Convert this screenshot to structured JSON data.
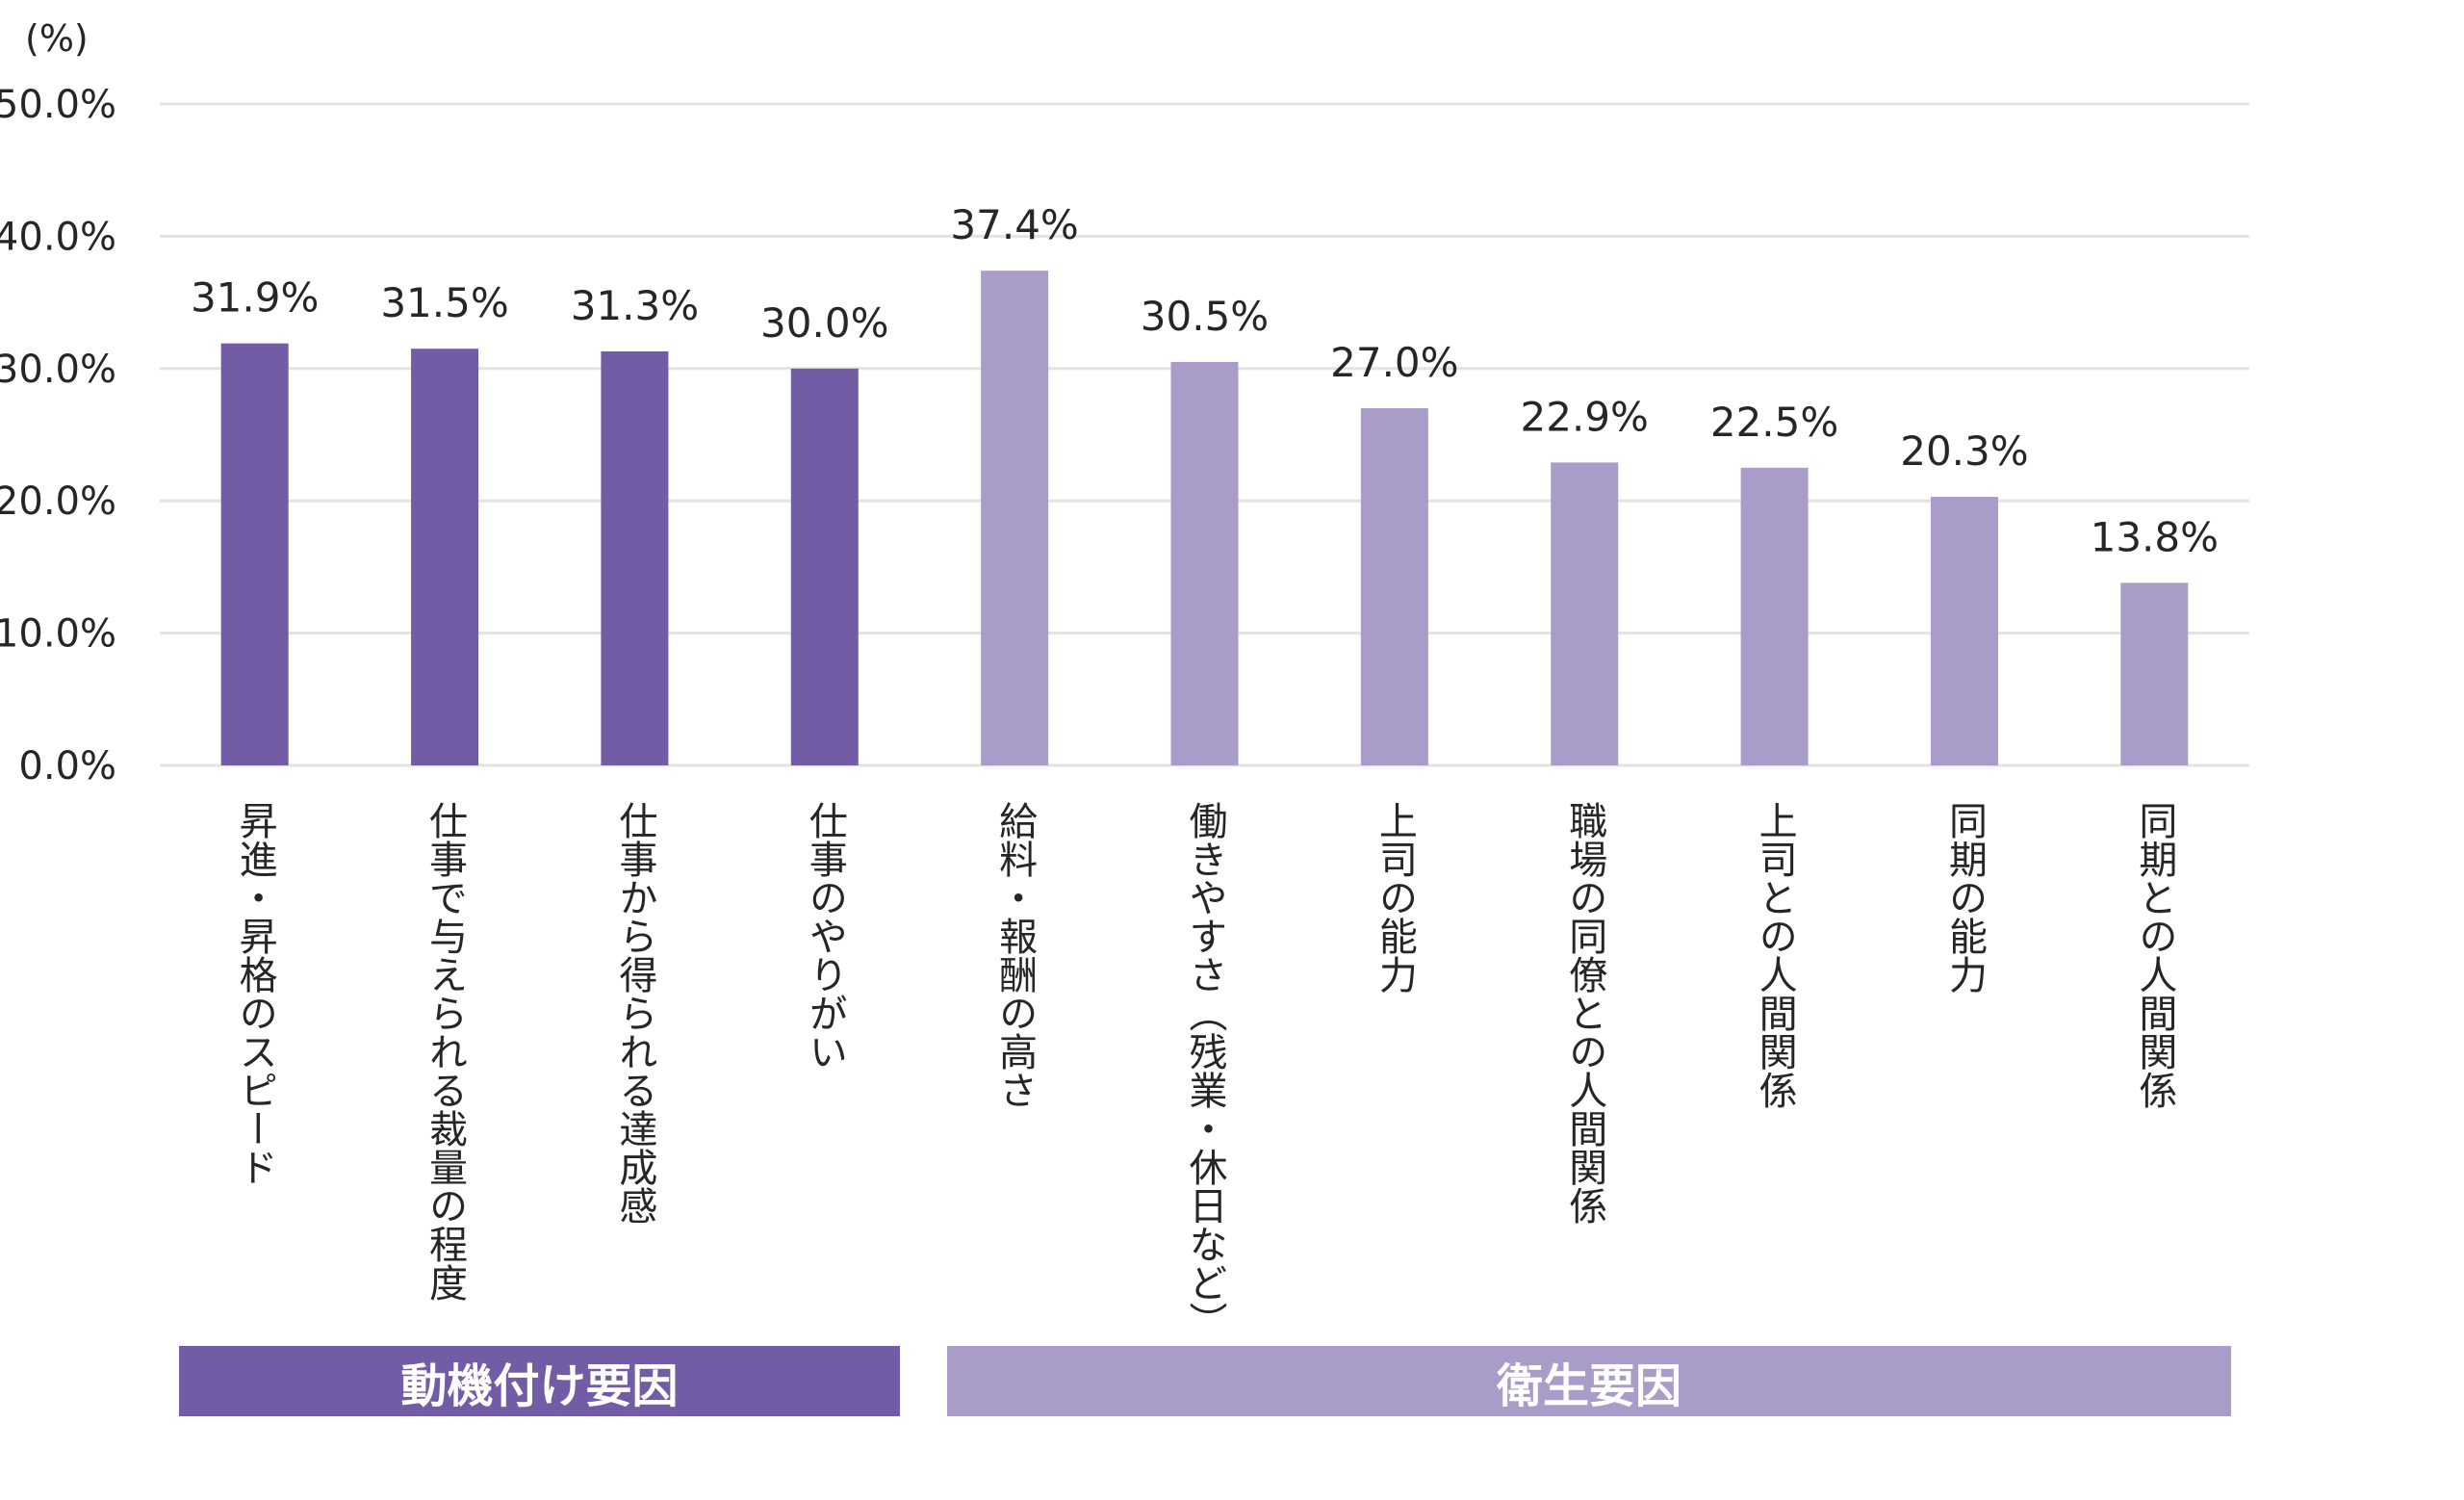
{
  "chart_data": {
    "type": "bar",
    "unit_label": "(%)",
    "ylim": [
      0,
      50
    ],
    "yticks": [
      "0.0%",
      "10.0%",
      "20.0%",
      "30.0%",
      "40.0%",
      "50.0%"
    ],
    "ytick_values": [
      0,
      10,
      20,
      30,
      40,
      50
    ],
    "grid": true,
    "categories": [
      "昇進・昇格のスピード",
      "仕事で与えられる裁量の程度",
      "仕事から得られる達成感",
      "仕事のやりがい",
      "給料・報酬の高さ",
      "働きやすさ（残業・休日など）",
      "上司の能力",
      "職場の同僚との人間関係",
      "上司との人間関係",
      "同期の能力",
      "同期との人間関係"
    ],
    "values": [
      31.9,
      31.5,
      31.3,
      30.0,
      37.4,
      30.5,
      27.0,
      22.9,
      22.5,
      20.3,
      13.8
    ],
    "value_labels": [
      "31.9%",
      "31.5%",
      "31.3%",
      "30.0%",
      "37.4%",
      "30.5%",
      "27.0%",
      "22.9%",
      "22.5%",
      "20.3%",
      "13.8%"
    ],
    "groups": [
      {
        "name": "動機付け要因",
        "start": 0,
        "end": 3,
        "color": "#725ca5"
      },
      {
        "name": "衛生要因",
        "start": 4,
        "end": 10,
        "color": "#a99cc9"
      }
    ]
  }
}
